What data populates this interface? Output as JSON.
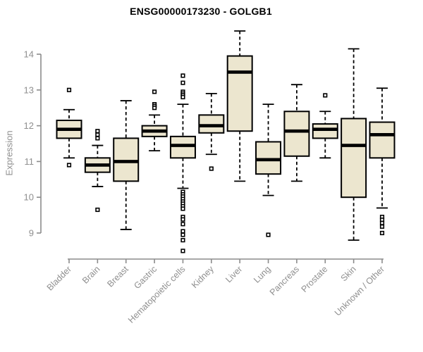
{
  "header": {
    "title": "ENSG00000173230 - GOLGB1"
  },
  "chart_data": {
    "type": "boxplot",
    "title": "ENSG00000173230 - GOLGB1",
    "xlabel": "",
    "ylabel": "Expression",
    "ylim": [
      9,
      14
    ],
    "y_ticks": [
      9,
      10,
      11,
      12,
      13,
      14
    ],
    "grid": false,
    "legend": "none",
    "colors": {
      "box_fill": "#ece6cf",
      "box_border": "#000000",
      "median": "#000000",
      "whisker": "#000000",
      "axis_line": "#8c8c8c",
      "axis_text": "#8f8f8f",
      "title_text": "#000000"
    },
    "categories": [
      "Bladder",
      "Brain",
      "Breast",
      "Gastric",
      "Hematopoietic cells",
      "Kidney",
      "Liver",
      "Lung",
      "Pancreas",
      "Prostate",
      "Skin",
      "Unknown / Other"
    ],
    "series": [
      {
        "name": "Bladder",
        "whisker_low": 11.1,
        "q1": 11.65,
        "median": 11.9,
        "q3": 12.15,
        "whisker_high": 12.45,
        "outliers": [
          13.0,
          10.9
        ]
      },
      {
        "name": "Brain",
        "whisker_low": 10.3,
        "q1": 10.7,
        "median": 10.9,
        "q3": 11.1,
        "whisker_high": 11.45,
        "outliers": [
          11.85,
          11.75,
          11.65,
          9.65
        ]
      },
      {
        "name": "Breast",
        "whisker_low": 9.1,
        "q1": 10.45,
        "median": 11.0,
        "q3": 11.65,
        "whisker_high": 12.7,
        "outliers": []
      },
      {
        "name": "Gastric",
        "whisker_low": 11.3,
        "q1": 11.7,
        "median": 11.85,
        "q3": 12.0,
        "whisker_high": 12.3,
        "outliers": [
          12.95,
          12.6,
          12.55,
          12.5
        ]
      },
      {
        "name": "Hematopoietic cells",
        "whisker_low": 10.25,
        "q1": 11.1,
        "median": 11.45,
        "q3": 11.7,
        "whisker_high": 12.6,
        "outliers": [
          13.4,
          13.2,
          12.95,
          12.9,
          12.85,
          12.8,
          10.15,
          10.08,
          10.02,
          9.95,
          9.88,
          9.82,
          9.75,
          9.68,
          9.45,
          9.38,
          9.25,
          9.05,
          8.95,
          8.8,
          8.5
        ]
      },
      {
        "name": "Kidney",
        "whisker_low": 11.2,
        "q1": 11.8,
        "median": 12.0,
        "q3": 12.3,
        "whisker_high": 12.9,
        "outliers": [
          10.8
        ]
      },
      {
        "name": "Liver",
        "whisker_low": 10.45,
        "q1": 11.85,
        "median": 13.5,
        "q3": 13.95,
        "whisker_high": 14.65,
        "outliers": []
      },
      {
        "name": "Lung",
        "whisker_low": 10.05,
        "q1": 10.65,
        "median": 11.05,
        "q3": 11.55,
        "whisker_high": 12.6,
        "outliers": [
          8.95
        ]
      },
      {
        "name": "Pancreas",
        "whisker_low": 10.45,
        "q1": 11.15,
        "median": 11.85,
        "q3": 12.4,
        "whisker_high": 13.15,
        "outliers": []
      },
      {
        "name": "Prostate",
        "whisker_low": 11.1,
        "q1": 11.65,
        "median": 11.9,
        "q3": 12.05,
        "whisker_high": 12.4,
        "outliers": [
          12.85
        ]
      },
      {
        "name": "Skin",
        "whisker_low": 8.8,
        "q1": 10.0,
        "median": 11.45,
        "q3": 12.2,
        "whisker_high": 14.15,
        "outliers": []
      },
      {
        "name": "Unknown / Other",
        "whisker_low": 9.7,
        "q1": 11.1,
        "median": 11.75,
        "q3": 12.1,
        "whisker_high": 13.05,
        "outliers": [
          9.45,
          9.37,
          9.28,
          9.18,
          9.0
        ]
      }
    ]
  }
}
